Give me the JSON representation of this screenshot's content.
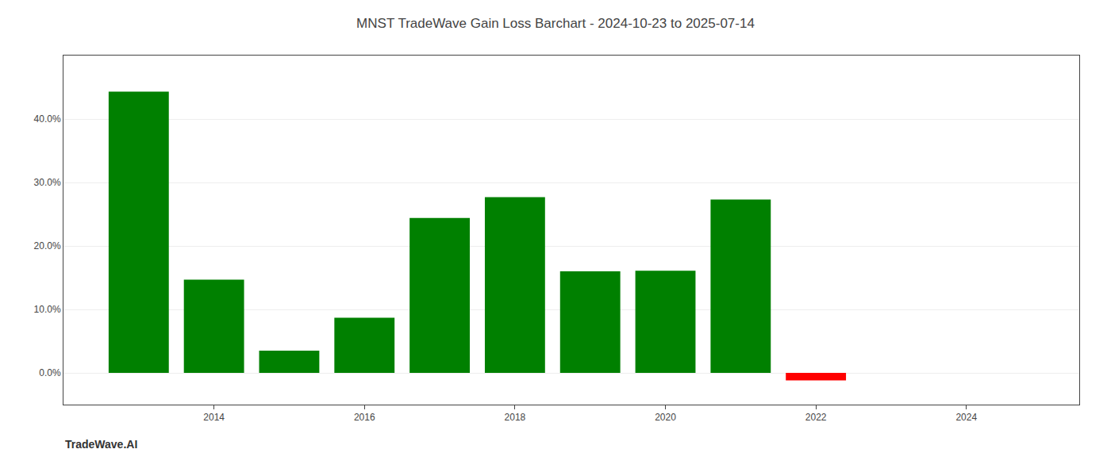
{
  "chart_data": {
    "type": "bar",
    "title": "MNST TradeWave Gain Loss Barchart - 2024-10-23 to 2025-07-14",
    "annotations": [
      "TradeWave.AI"
    ],
    "x": [
      2013,
      2014,
      2015,
      2016,
      2017,
      2018,
      2019,
      2020,
      2021,
      2022
    ],
    "values": [
      0.443,
      0.147,
      0.035,
      0.087,
      0.244,
      0.277,
      0.16,
      0.161,
      0.273,
      -0.012
    ],
    "colors": [
      "#008000",
      "#008000",
      "#008000",
      "#008000",
      "#008000",
      "#008000",
      "#008000",
      "#008000",
      "#008000",
      "#ff0000"
    ],
    "xlim": [
      2012.0,
      2025.5
    ],
    "xticks": [
      2014,
      2016,
      2018,
      2020,
      2022,
      2024
    ],
    "ylim": [
      -0.05,
      0.5
    ],
    "yticks": [
      {
        "value": 0.0,
        "label": "0.0%"
      },
      {
        "value": 0.1,
        "label": "10.0%"
      },
      {
        "value": 0.2,
        "label": "20.0%"
      },
      {
        "value": 0.3,
        "label": "30.0%"
      },
      {
        "value": 0.4,
        "label": "40.0%"
      }
    ],
    "grid": true
  }
}
